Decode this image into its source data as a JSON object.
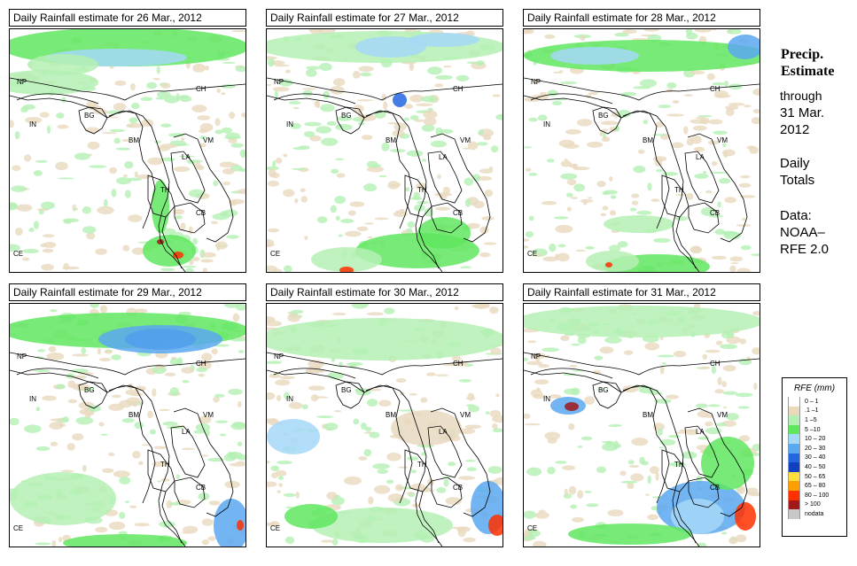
{
  "panels": [
    {
      "title": "Daily Rainfall estimate for  26 Mar., 2012",
      "date": "26 Mar."
    },
    {
      "title": "Daily Rainfall estimate for  27 Mar., 2012",
      "date": "27 Mar."
    },
    {
      "title": "Daily Rainfall estimate for  28 Mar., 2012",
      "date": "28 Mar."
    },
    {
      "title": "Daily Rainfall estimate for  29 Mar., 2012",
      "date": "29 Mar."
    },
    {
      "title": "Daily Rainfall estimate for  30 Mar., 2012",
      "date": "30 Mar."
    },
    {
      "title": "Daily Rainfall estimate for  31 Mar., 2012",
      "date": "31 Mar."
    }
  ],
  "country_labels": [
    "NP",
    "CH",
    "IN",
    "BG",
    "BM",
    "VM",
    "LA",
    "TH",
    "CB",
    "CE"
  ],
  "sidebar": {
    "title_line1": "Precip.",
    "title_line2": "Estimate",
    "through_label": "through",
    "end_date_line1": "31 Mar.",
    "end_date_line2": "2012",
    "daily_line1": "Daily",
    "daily_line2": "Totals",
    "data_line1": "Data:",
    "data_line2": "NOAA–",
    "data_line3": "RFE 2.0"
  },
  "legend": {
    "title": "RFE (mm)",
    "items": [
      {
        "label": "0 – 1",
        "color": "#ffffff"
      },
      {
        "label": ".1 –1",
        "color": "#e8d9bf"
      },
      {
        "label": "1 –5",
        "color": "#b4f0b4"
      },
      {
        "label": "5 –10",
        "color": "#5fe65f"
      },
      {
        "label": "10 – 20",
        "color": "#a6d8f8"
      },
      {
        "label": "20 – 30",
        "color": "#5aa8f0"
      },
      {
        "label": "30 – 40",
        "color": "#2266e0"
      },
      {
        "label": "40 – 50",
        "color": "#1040c0"
      },
      {
        "label": "50 – 65",
        "color": "#ffe040"
      },
      {
        "label": "65 – 80",
        "color": "#ff9f00"
      },
      {
        "label": "80 – 100",
        "color": "#ff3000"
      },
      {
        "label": "> 100",
        "color": "#a01818"
      },
      {
        "label": "nodata",
        "color": "#c8c8c8"
      }
    ]
  }
}
